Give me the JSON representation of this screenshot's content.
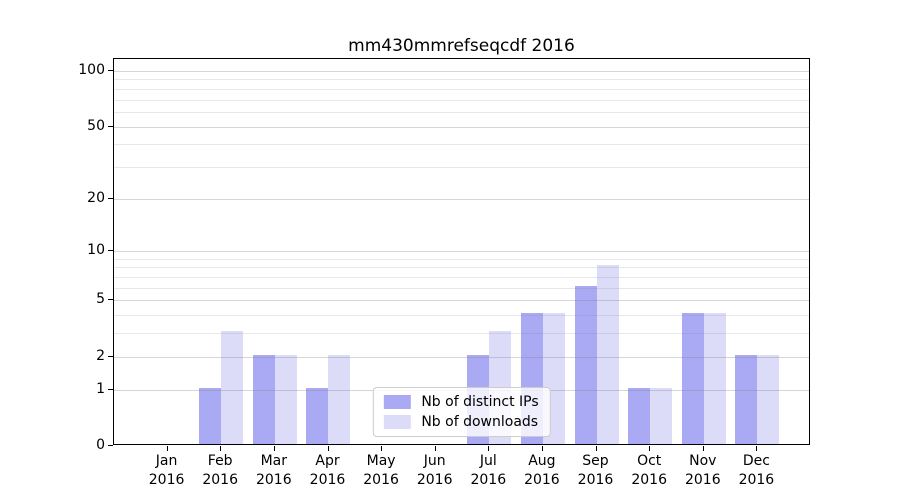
{
  "title": "mm430mmrefseqcdf 2016",
  "colors": {
    "series_ips": "#a9a9f4",
    "series_downloads": "#dcdcf9",
    "grid_minor": "rgba(130,130,130,0.18)",
    "grid_major": "rgba(130,130,130,0.33)",
    "axis": "#000000",
    "legend_border": "#cccccc"
  },
  "chart_data": {
    "type": "bar",
    "title": "mm430mmrefseqcdf 2016",
    "categories": [
      "Jan 2016",
      "Feb 2016",
      "Mar 2016",
      "Apr 2016",
      "May 2016",
      "Jun 2016",
      "Jul 2016",
      "Aug 2016",
      "Sep 2016",
      "Oct 2016",
      "Nov 2016",
      "Dec 2016"
    ],
    "series": [
      {
        "name": "Nb of distinct IPs",
        "color": "#a9a9f4",
        "values": [
          0,
          1,
          2,
          1,
          0,
          0,
          2,
          4,
          6,
          1,
          4,
          2
        ]
      },
      {
        "name": "Nb of downloads",
        "color": "#dcdcf9",
        "values": [
          0,
          3,
          2,
          2,
          0,
          0,
          3,
          4,
          8,
          1,
          4,
          2
        ]
      }
    ],
    "yscale": "log1p",
    "ylim": [
      0,
      116
    ],
    "y_major_ticks": [
      0,
      1,
      2,
      5,
      10,
      20,
      50,
      100
    ],
    "y_minor_gridlines": [
      3,
      4,
      6,
      7,
      8,
      9,
      30,
      40,
      60,
      70,
      80,
      90
    ],
    "xlabel": "",
    "ylabel": "",
    "grid": true,
    "legend_position": "lower center"
  }
}
